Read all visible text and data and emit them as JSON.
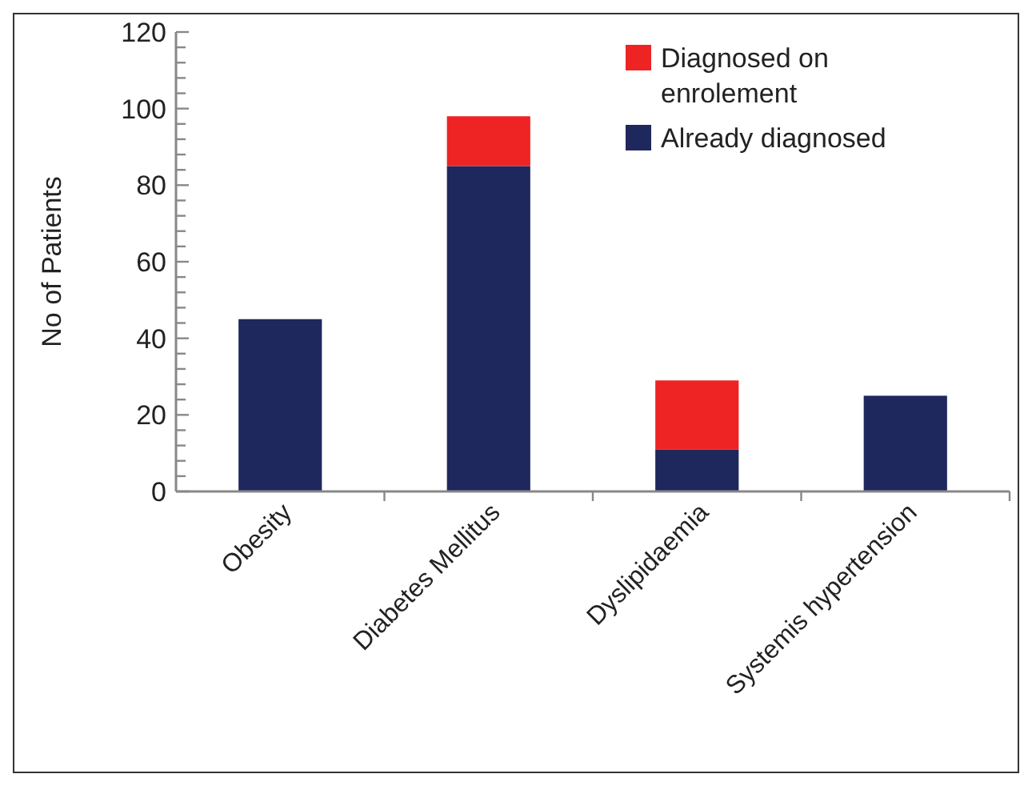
{
  "chart_data": {
    "type": "bar",
    "stacked": true,
    "ylabel": "No of Patients",
    "categories": [
      "Obesity",
      "Diabetes Mellitus",
      "Dyslipidaemia",
      "Systemis hypertension"
    ],
    "series": [
      {
        "name": "Already diagnosed",
        "color": "#1f285c",
        "values": [
          45,
          85,
          11,
          25
        ]
      },
      {
        "name": "Diagnosed on enrolement",
        "color": "#ee2424",
        "values": [
          0,
          13,
          18,
          0
        ]
      }
    ],
    "ylim": [
      0,
      120
    ],
    "yticks": [
      0,
      {
        "value": 4,
        "label": null
      },
      {
        "value": 8,
        "label": null
      },
      {
        "value": 12,
        "label": null
      },
      {
        "value": 16,
        "label": null
      },
      20,
      {
        "value": 24,
        "label": null
      },
      {
        "value": 28,
        "label": null
      },
      {
        "value": 32,
        "label": null
      },
      {
        "value": 36,
        "label": null
      },
      40,
      {
        "value": 44,
        "label": null
      },
      {
        "value": 48,
        "label": null
      },
      {
        "value": 52,
        "label": null
      },
      {
        "value": 56,
        "label": null
      },
      60,
      {
        "value": 64,
        "label": null
      },
      {
        "value": 68,
        "label": null
      },
      {
        "value": 72,
        "label": null
      },
      {
        "value": 76,
        "label": null
      },
      80,
      {
        "value": 84,
        "label": null
      },
      {
        "value": 88,
        "label": null
      },
      {
        "value": 92,
        "label": null
      },
      {
        "value": 96,
        "label": null
      },
      100,
      {
        "value": 104,
        "label": null
      },
      {
        "value": 108,
        "label": null
      },
      {
        "value": 112,
        "label": null
      },
      {
        "value": 116,
        "label": null
      },
      120
    ],
    "legend": "top right",
    "grid": false
  }
}
